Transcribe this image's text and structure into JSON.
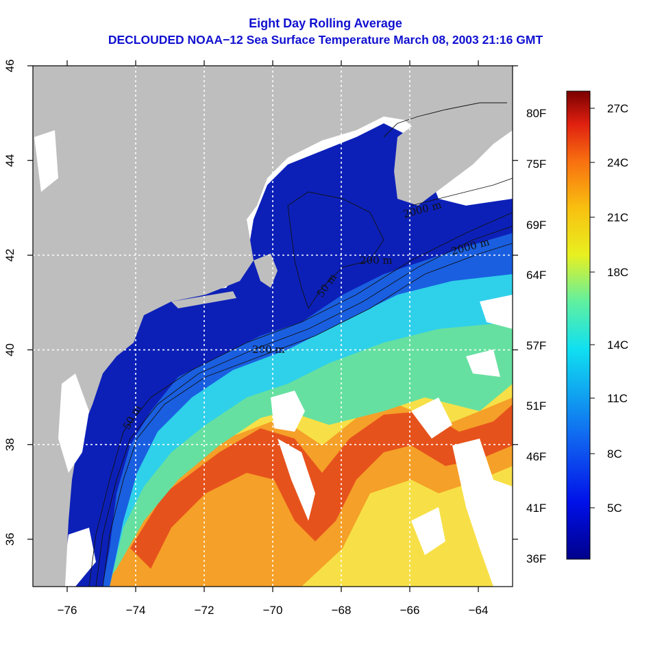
{
  "title": {
    "line1": "Eight Day Rolling Average",
    "line2": "DECLOUDED NOAA−12 Sea Surface Temperature March 08, 2003 21:16 GMT"
  },
  "map": {
    "lon_range": [
      -77,
      -63
    ],
    "lat_range": [
      35,
      46
    ],
    "lon_ticks": [
      "−76",
      "−74",
      "−72",
      "−70",
      "−68",
      "−66",
      "−64"
    ],
    "lat_ticks": [
      "36",
      "38",
      "40",
      "42",
      "44",
      "46"
    ],
    "grid": "dotted white",
    "contour_labels": [
      "50 m",
      "50 m",
      "200 m",
      "200 m",
      "2000 m",
      "2000 m"
    ],
    "colors": {
      "land": "#bebebe",
      "cloud": "#ffffff",
      "cold": "#0a1fb8",
      "cool": "#1d6ee0",
      "mid": "#30d0e8",
      "green": "#6ee0a0",
      "yellow": "#f5e040",
      "orange": "#f59a20",
      "warm": "#e6501a"
    }
  },
  "colorbar": {
    "celsius_labels": [
      "27C",
      "24C",
      "21C",
      "18C",
      "14C",
      "11C",
      "8C",
      "5C"
    ],
    "fahrenheit_labels": [
      "80F",
      "75F",
      "69F",
      "64F",
      "57F",
      "51F",
      "46F",
      "41F",
      "36F"
    ]
  }
}
